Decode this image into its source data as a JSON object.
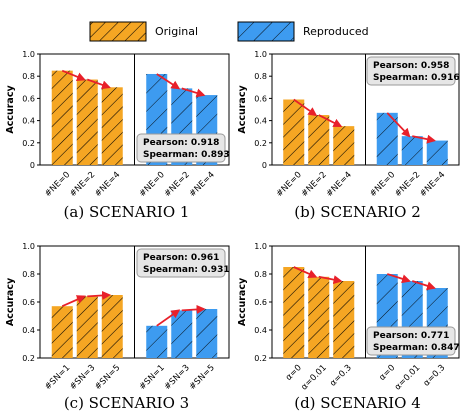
{
  "legend": {
    "original": {
      "label": "Original",
      "color": "#f5a623"
    },
    "reproduced": {
      "label": "Reproduced",
      "color": "#3d9bf0"
    }
  },
  "chart_data": [
    {
      "type": "bar",
      "caption": "(a)  SCENARIO 1",
      "ylabel": "Accuracy",
      "ylim": [
        0,
        1.0
      ],
      "yticks": [
        "0",
        "0.2",
        "0.4",
        "0.6",
        "0.8",
        "1.0"
      ],
      "categories": [
        "#NE=0",
        "#NE=2",
        "#NE=4"
      ],
      "series": [
        {
          "name": "Original",
          "values": [
            0.85,
            0.77,
            0.7
          ]
        },
        {
          "name": "Reproduced",
          "values": [
            0.82,
            0.69,
            0.63
          ]
        }
      ],
      "stats": {
        "pearson": "Pearson: 0.918",
        "spearman": "Spearman: 0.893",
        "position": "bottom-right"
      }
    },
    {
      "type": "bar",
      "caption": "(b)  SCENARIO 2",
      "ylabel": "Accuracy",
      "ylim": [
        0,
        1.0
      ],
      "yticks": [
        "0",
        "0.2",
        "0.4",
        "0.6",
        "0.8",
        "1.0"
      ],
      "categories": [
        "#NE=0",
        "#NE=2",
        "#NE=4"
      ],
      "series": [
        {
          "name": "Original",
          "values": [
            0.59,
            0.45,
            0.35
          ]
        },
        {
          "name": "Reproduced",
          "values": [
            0.47,
            0.26,
            0.22
          ]
        }
      ],
      "stats": {
        "pearson": "Pearson: 0.958",
        "spearman": "Spearman: 0.916",
        "position": "top-right"
      }
    },
    {
      "type": "bar",
      "caption": "(c)  SCENARIO 3",
      "ylabel": "Accuracy",
      "ylim": [
        0.2,
        1.0
      ],
      "yticks": [
        "0.2",
        "0.4",
        "0.6",
        "0.8",
        "1.0"
      ],
      "categories": [
        "#SN=1",
        "#SN=3",
        "#SN=5"
      ],
      "series": [
        {
          "name": "Original",
          "values": [
            0.57,
            0.64,
            0.65
          ]
        },
        {
          "name": "Reproduced",
          "values": [
            0.43,
            0.54,
            0.55
          ]
        }
      ],
      "stats": {
        "pearson": "Pearson: 0.961",
        "spearman": "Spearman: 0.931",
        "position": "top-right"
      }
    },
    {
      "type": "bar",
      "caption": "(d)  SCENARIO 4",
      "ylabel": "Accuracy",
      "ylim": [
        0.2,
        1.0
      ],
      "yticks": [
        "0.2",
        "0.4",
        "0.6",
        "0.8",
        "1.0"
      ],
      "categories": [
        "α=0",
        "α=0.01",
        "α=0.3"
      ],
      "series": [
        {
          "name": "Original",
          "values": [
            0.85,
            0.78,
            0.75
          ]
        },
        {
          "name": "Reproduced",
          "values": [
            0.8,
            0.75,
            0.7
          ]
        }
      ],
      "stats": {
        "pearson": "Pearson: 0.771",
        "spearman": "Spearman: 0.847",
        "position": "bottom-right"
      }
    }
  ]
}
